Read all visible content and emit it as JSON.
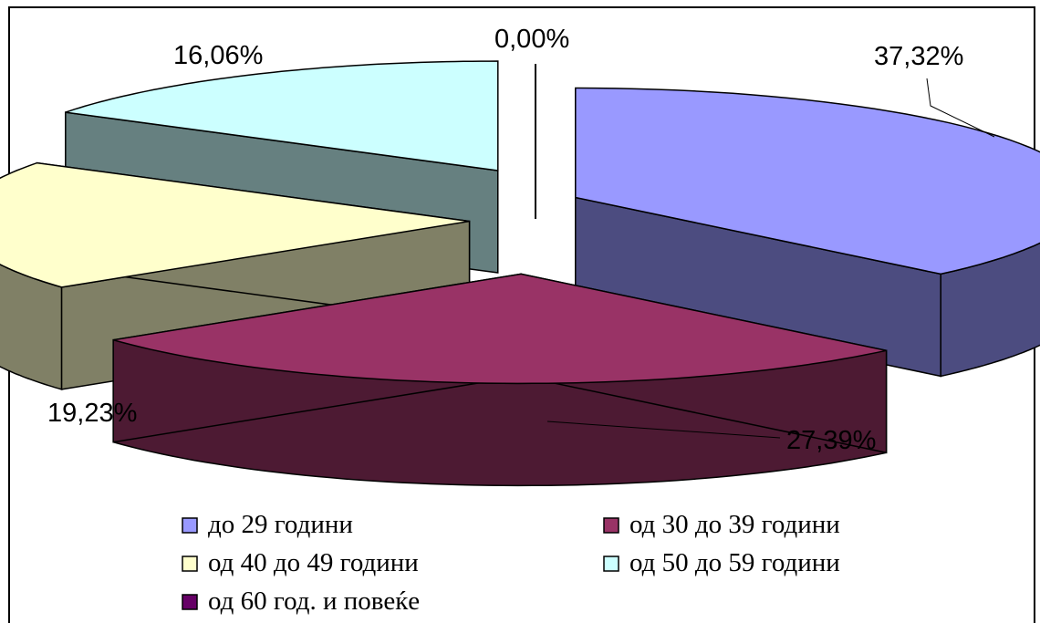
{
  "chart_data": {
    "type": "pie",
    "style": "3d-exploded",
    "title": "",
    "categories": [
      "до 29 години",
      "од 30 до 39 години",
      "од 40 до 49 години",
      "од 50 до 59 години",
      "од 60 год. и повеќе"
    ],
    "values": [
      37.32,
      27.39,
      19.23,
      16.06,
      0.0
    ],
    "value_labels": [
      "37,32%",
      "27,39%",
      "19,23%",
      "16,06%",
      "0,00%"
    ],
    "colors": {
      "top": [
        "#9999FF",
        "#993366",
        "#FFFFCC",
        "#CCFFFF",
        "#660066"
      ],
      "side": [
        "#4C4C80",
        "#4D1A33",
        "#808066",
        "#668080",
        "#330033"
      ]
    },
    "legend_position": "bottom"
  }
}
